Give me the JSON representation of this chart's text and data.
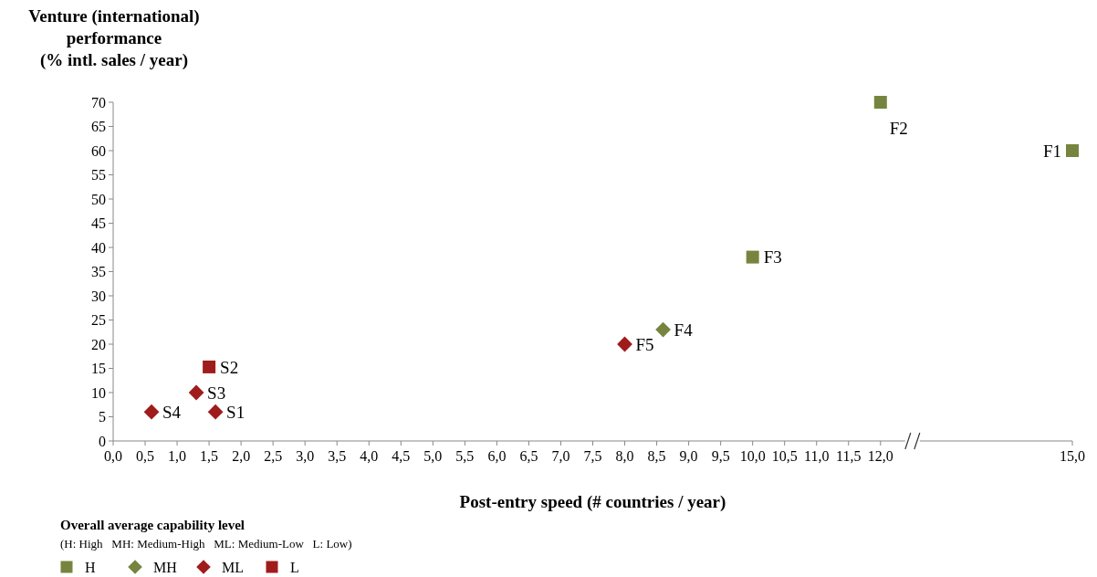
{
  "chart_data": {
    "type": "scatter",
    "ylabel": "Venture (international)\nperformance\n(% intl. sales / year)",
    "xlabel": "Post-entry speed (# countries / year)",
    "legend_title": "Overall average capability level",
    "legend": "bottom left",
    "grid": false,
    "xlim": [
      0,
      15
    ],
    "xticks": [
      {
        "value": 0,
        "label": "0,0"
      },
      {
        "value": 0.5,
        "label": "0,5"
      },
      {
        "value": 1,
        "label": "1,0"
      },
      {
        "value": 1.5,
        "label": "1,5"
      },
      {
        "value": 2,
        "label": "2,0"
      },
      {
        "value": 2.5,
        "label": "2,5"
      },
      {
        "value": 3,
        "label": "3,0"
      },
      {
        "value": 3.5,
        "label": "3,5"
      },
      {
        "value": 4,
        "label": "4,0"
      },
      {
        "value": 4.5,
        "label": "4,5"
      },
      {
        "value": 5,
        "label": "5,0"
      },
      {
        "value": 5.5,
        "label": "5,5"
      },
      {
        "value": 6,
        "label": "6,0"
      },
      {
        "value": 6.5,
        "label": "6,5"
      },
      {
        "value": 7,
        "label": "7,0"
      },
      {
        "value": 7.5,
        "label": "7,5"
      },
      {
        "value": 8,
        "label": "8,0"
      },
      {
        "value": 8.5,
        "label": "8,5"
      },
      {
        "value": 9,
        "label": "9,0"
      },
      {
        "value": 9.5,
        "label": "9,5"
      },
      {
        "value": 10,
        "label": "10,0"
      },
      {
        "value": 10.5,
        "label": "10,5"
      },
      {
        "value": 11,
        "label": "11,0"
      },
      {
        "value": 11.5,
        "label": "11,5"
      },
      {
        "value": 12,
        "label": "12,0"
      },
      {
        "value": 15,
        "label": "15,0"
      }
    ],
    "ylim": [
      0,
      70
    ],
    "yticks": [
      0,
      5,
      10,
      15,
      20,
      25,
      30,
      35,
      40,
      45,
      50,
      55,
      60,
      65,
      70
    ],
    "series": [
      {
        "name": "H",
        "color": "#76843f",
        "marker": "square",
        "x": [
          12,
          15,
          10
        ],
        "values": [
          70,
          60,
          38
        ]
      },
      {
        "name": "MH",
        "color": "#76843f",
        "marker": "diamond",
        "x": [
          8.6
        ],
        "values": [
          23
        ]
      },
      {
        "name": "ML",
        "color": "#a01c1c",
        "marker": "diamond",
        "x": [
          8,
          1.3,
          1.6,
          0.6
        ],
        "values": [
          20,
          10,
          6,
          6
        ]
      },
      {
        "name": "L",
        "color": "#a01c1c",
        "marker": "square",
        "x": [
          1.5
        ],
        "values": [
          15.3
        ]
      }
    ],
    "annotations": [
      {
        "text": "F2",
        "x": 12,
        "y": 70
      },
      {
        "text": "F1",
        "x": 15,
        "y": 60
      },
      {
        "text": "F3",
        "x": 10,
        "y": 38
      },
      {
        "text": "F4",
        "x": 8.6,
        "y": 23
      },
      {
        "text": "F5",
        "x": 8,
        "y": 20
      },
      {
        "text": "S2",
        "x": 1.5,
        "y": 15.3
      },
      {
        "text": "S3",
        "x": 1.3,
        "y": 10
      },
      {
        "text": "S1",
        "x": 1.6,
        "y": 6
      },
      {
        "text": "S4",
        "x": 0.6,
        "y": 6
      },
      "(H: High   MH: Medium-High   ML: Medium-Low   L: Low)"
    ]
  }
}
